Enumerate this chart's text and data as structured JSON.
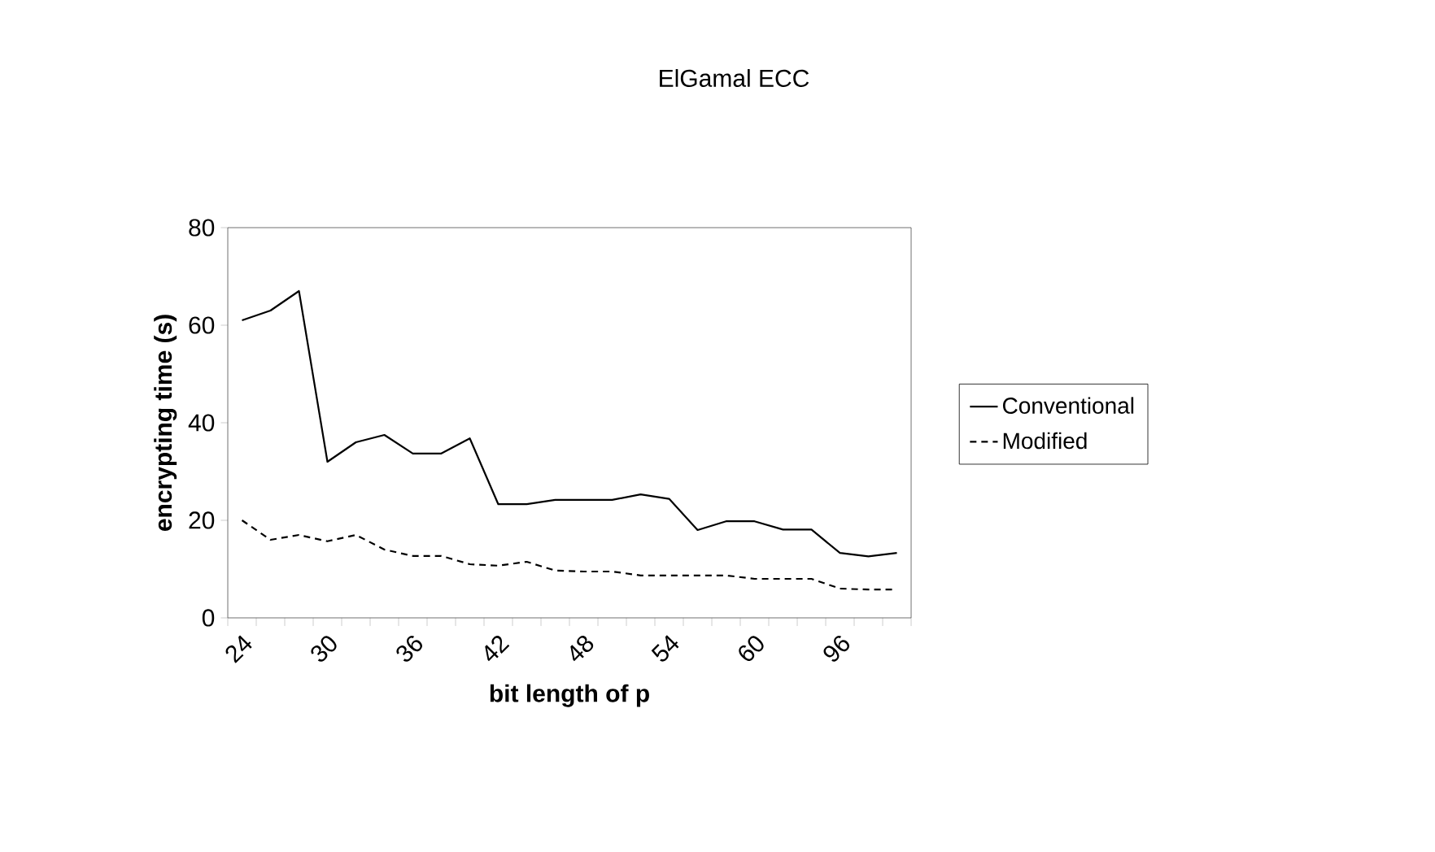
{
  "chart_data": {
    "type": "line",
    "title": "ElGamal ECC",
    "xlabel": "bit length of p",
    "ylabel": "encrypting time (s)",
    "categories": [
      "24",
      null,
      null,
      "30",
      null,
      null,
      "36",
      null,
      null,
      "42",
      null,
      null,
      "48",
      null,
      null,
      "54",
      null,
      null,
      "60",
      null,
      null,
      "96",
      null,
      null
    ],
    "series": [
      {
        "name": "Conventional",
        "color": "#000000",
        "line_style": "solid",
        "values": [
          61,
          63,
          67,
          32,
          36,
          37.5,
          33.7,
          33.7,
          36.8,
          23.3,
          23.3,
          24.2,
          24.2,
          24.2,
          25.3,
          24.4,
          18,
          19.8,
          19.8,
          18.1,
          18.1,
          13.3,
          12.6,
          13.3
        ]
      },
      {
        "name": "Modified",
        "color": "#000000",
        "line_style": "dashed",
        "values": [
          20,
          16,
          17,
          15.7,
          17,
          14,
          12.7,
          12.7,
          11,
          10.7,
          11.5,
          9.7,
          9.5,
          9.5,
          8.7,
          8.7,
          8.7,
          8.7,
          8,
          8,
          8,
          6,
          5.8,
          5.8
        ]
      }
    ],
    "ylim": [
      0,
      80
    ],
    "yticks": [
      0,
      20,
      40,
      60,
      80
    ],
    "grid": false,
    "legend": "right",
    "marker": "none"
  }
}
